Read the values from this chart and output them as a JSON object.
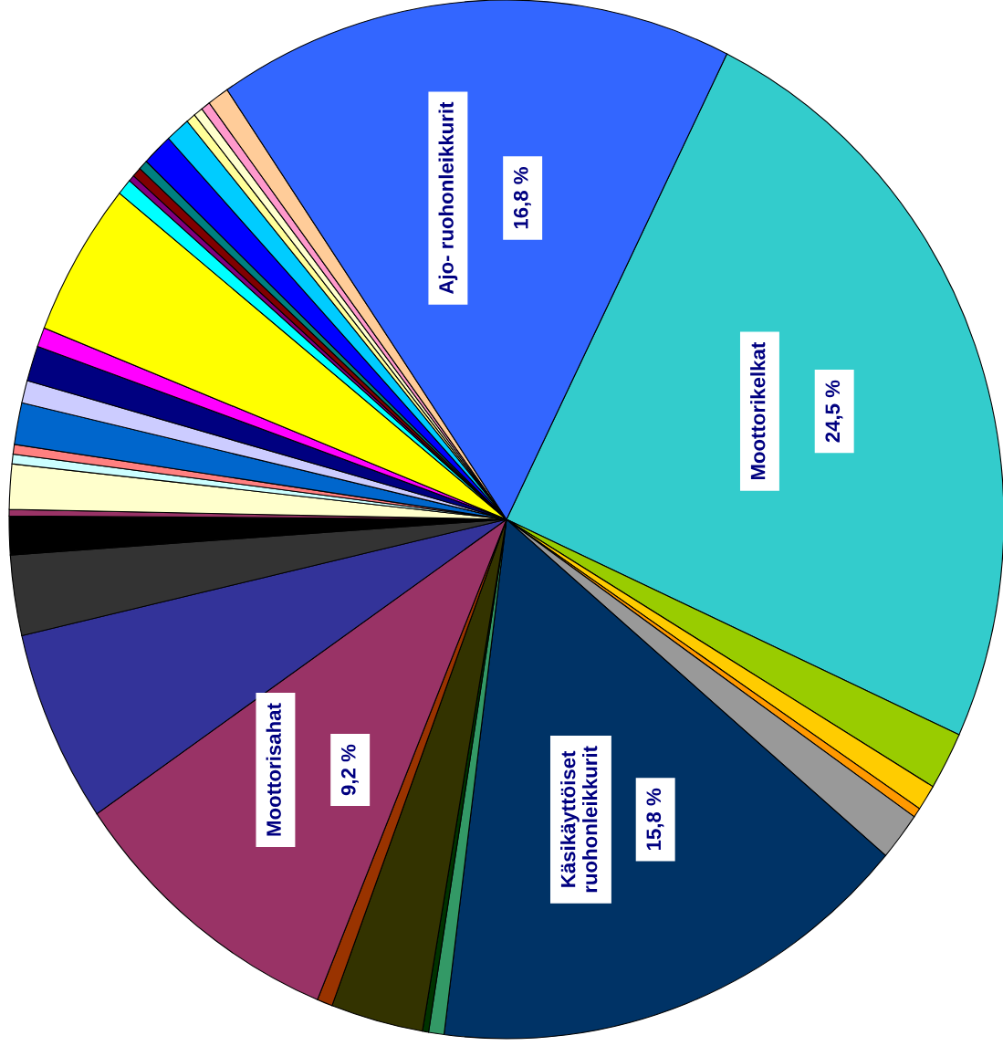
{
  "chart_data": {
    "type": "pie",
    "categories": [
      "Moottorikelkat",
      null,
      null,
      null,
      null,
      "Käsikäyttöiset\nruohonleikkurit",
      null,
      null,
      null,
      null,
      "Moottorisahat",
      null,
      null,
      null,
      null,
      null,
      null,
      null,
      null,
      null,
      null,
      null,
      null,
      null,
      null,
      null,
      null,
      null,
      null,
      null,
      null,
      null,
      null,
      "Ajo- ruohonleikkurit"
    ],
    "values": [
      24.5,
      1.8,
      0.8,
      0.3,
      1.5,
      15.8,
      0.5,
      0.2,
      3.0,
      0.5,
      9.2,
      6.0,
      2.5,
      1.2,
      0.2,
      1.4,
      0.3,
      0.3,
      1.3,
      0.7,
      1.1,
      0.6,
      4.8,
      0.5,
      0.2,
      0.3,
      0.3,
      1.0,
      0.8,
      0.3,
      0.3,
      0.3,
      0.7,
      16.8
    ],
    "value_labels": [
      "24,5 %",
      null,
      null,
      null,
      null,
      "15,8 %",
      null,
      null,
      null,
      null,
      "9,2 %",
      null,
      null,
      null,
      null,
      null,
      null,
      null,
      null,
      null,
      null,
      null,
      null,
      null,
      null,
      null,
      null,
      null,
      null,
      null,
      null,
      null,
      null,
      "16,8 %"
    ],
    "colors": [
      "#33cccc",
      "#99cc00",
      "#ffcc00",
      "#ff9900",
      "#999999",
      "#003366",
      "#339966",
      "#003300",
      "#333300",
      "#993300",
      "#993366",
      "#333399",
      "#333333",
      "#000000",
      "#993366",
      "#ffffcc",
      "#ccffff",
      "#ff8080",
      "#0066cc",
      "#ccccff",
      "#000080",
      "#ff00ff",
      "#ffff00",
      "#00ffff",
      "#800080",
      "#800000",
      "#008080",
      "#0000ff",
      "#00ccff",
      "#ffff99",
      "#ffffcc",
      "#ff99cc",
      "#ffcc99",
      "#3366ff"
    ]
  }
}
